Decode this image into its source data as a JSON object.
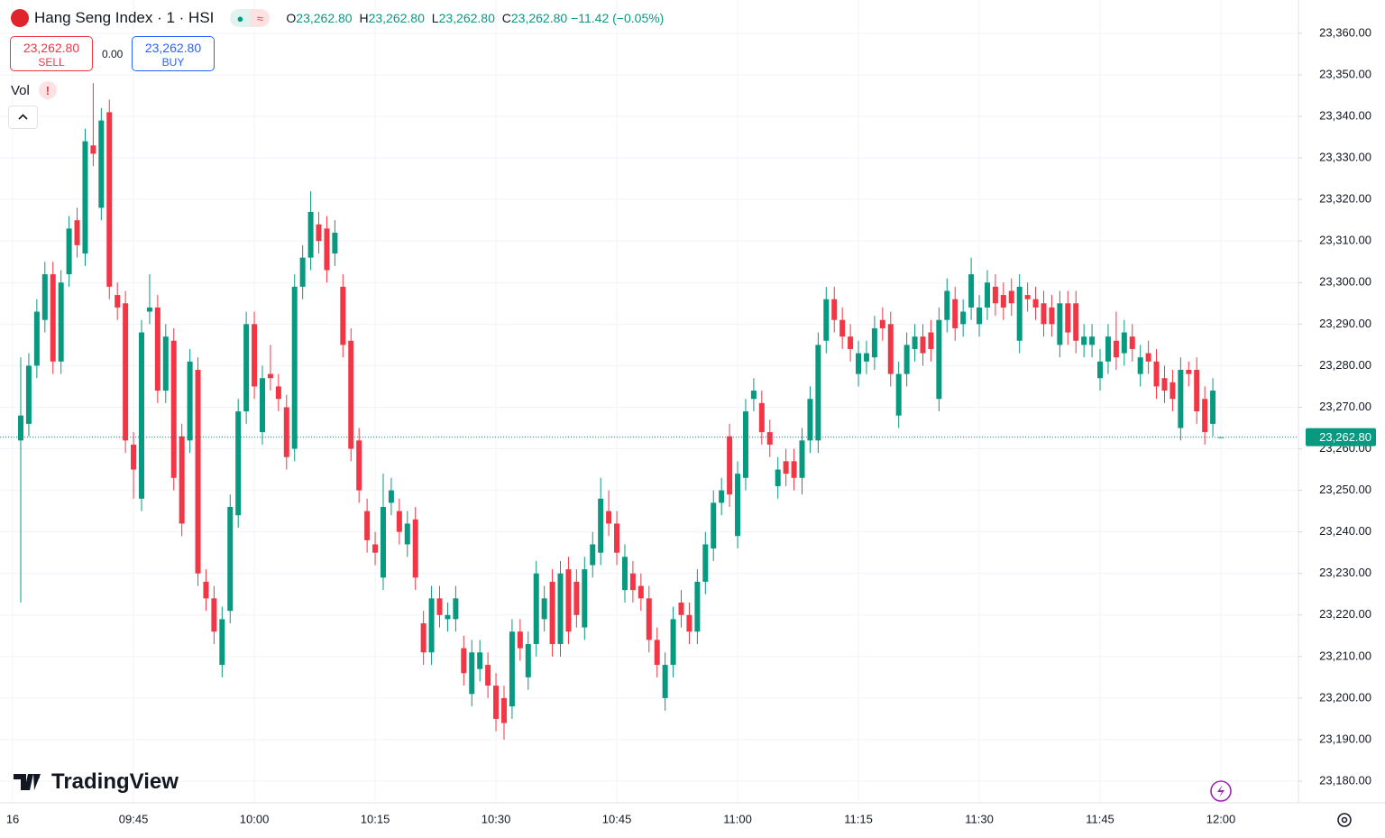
{
  "header": {
    "title": "Hang Seng Index · 1 · HSI",
    "ohlc": [
      {
        "key": "O",
        "value": "23,262.80"
      },
      {
        "key": "H",
        "value": "23,262.80"
      },
      {
        "key": "L",
        "value": "23,262.80"
      },
      {
        "key": "C",
        "value": "23,262.80"
      }
    ],
    "change": "−11.42 (−0.05%)",
    "sell_price": "23,262.80",
    "sell_label": "SELL",
    "spread": "0.00",
    "buy_price": "23,262.80",
    "buy_label": "BUY",
    "volume_label": "Vol",
    "volume_warning": "!",
    "logo": "TradingView"
  },
  "chart_data": {
    "type": "candlestick",
    "up_color": "#089981",
    "down_color": "#f23645",
    "grid": true,
    "x": [
      "09:31",
      "09:32",
      "09:33",
      "09:34",
      "09:35",
      "09:36",
      "09:37",
      "09:38",
      "09:39",
      "09:40",
      "09:41",
      "09:42",
      "09:43",
      "09:44",
      "09:45",
      "09:46",
      "09:47",
      "09:48",
      "09:49",
      "09:50",
      "09:51",
      "09:52",
      "09:53",
      "09:54",
      "09:55",
      "09:56",
      "09:57",
      "09:58",
      "09:59",
      "10:00",
      "10:01",
      "10:02",
      "10:03",
      "10:04",
      "10:05",
      "10:06",
      "10:07",
      "10:08",
      "10:09",
      "10:10",
      "10:11",
      "10:12",
      "10:13",
      "10:14",
      "10:15",
      "10:16",
      "10:17",
      "10:18",
      "10:19",
      "10:20",
      "10:21",
      "10:22",
      "10:23",
      "10:24",
      "10:25",
      "10:26",
      "10:27",
      "10:28",
      "10:29",
      "10:30",
      "10:31",
      "10:32",
      "10:33",
      "10:34",
      "10:35",
      "10:36",
      "10:37",
      "10:38",
      "10:39",
      "10:40",
      "10:41",
      "10:42",
      "10:43",
      "10:44",
      "10:45",
      "10:46",
      "10:47",
      "10:48",
      "10:49",
      "10:50",
      "10:51",
      "10:52",
      "10:53",
      "10:54",
      "10:55",
      "10:56",
      "10:57",
      "10:58",
      "10:59",
      "11:00",
      "11:01",
      "11:02",
      "11:03",
      "11:04",
      "11:05",
      "11:06",
      "11:07",
      "11:08",
      "11:09",
      "11:10",
      "11:11",
      "11:12",
      "11:13",
      "11:14",
      "11:15",
      "11:16",
      "11:17",
      "11:18",
      "11:19",
      "11:20",
      "11:21",
      "11:22",
      "11:23",
      "11:24",
      "11:25",
      "11:26",
      "11:27",
      "11:28",
      "11:29",
      "11:30",
      "11:31",
      "11:32",
      "11:33",
      "11:34",
      "11:35",
      "11:36",
      "11:37",
      "11:38",
      "11:39",
      "11:40",
      "11:41",
      "11:42",
      "11:43",
      "11:44",
      "11:45",
      "11:46",
      "11:47",
      "11:48",
      "11:49",
      "11:50",
      "11:51",
      "11:52",
      "11:53",
      "11:54",
      "11:55",
      "11:56",
      "11:57",
      "11:58",
      "11:59",
      "12:00"
    ],
    "open": [
      23262,
      23266,
      23280,
      23291,
      23302,
      23281,
      23302,
      23315,
      23307,
      23333,
      23318,
      23341,
      23297,
      23295,
      23261,
      23248,
      23293,
      23294,
      23274,
      23286,
      23263,
      23262,
      23279,
      23228,
      23224,
      23208,
      23221,
      23244,
      23269,
      23290,
      23264,
      23278,
      23275,
      23270,
      23260,
      23299,
      23306,
      23314,
      23313,
      23307,
      23299,
      23286,
      23262,
      23245,
      23237,
      23229,
      23247,
      23245,
      23237,
      23243,
      23218,
      23211,
      23224,
      23219,
      23219,
      23212,
      23201,
      23207,
      23208,
      23203,
      23200,
      23198,
      23216,
      23205,
      23213,
      23219,
      23228,
      23213,
      23231,
      23228,
      23217,
      23232,
      23235,
      23245,
      23242,
      23226,
      23230,
      23227,
      23224,
      23214,
      23200,
      23208,
      23223,
      23220,
      23216,
      23228,
      23236,
      23247,
      23263,
      23239,
      23253,
      23272,
      23271,
      23264,
      23251,
      23257,
      23257,
      23253,
      23262,
      23262,
      23286,
      23296,
      23291,
      23287,
      23278,
      23281,
      23282,
      23291,
      23290,
      23268,
      23278,
      23284,
      23287,
      23288,
      23272,
      23291,
      23296,
      23290,
      23294,
      23290,
      23294,
      23299,
      23297,
      23298,
      23286,
      23297,
      23296,
      23295,
      23294,
      23285,
      23295,
      23295,
      23285,
      23285,
      23277,
      23281,
      23286,
      23283,
      23287,
      23278,
      23283,
      23281,
      23277,
      23276,
      23265,
      23279,
      23279,
      23272,
      23266,
      23262.8
    ],
    "high": [
      23282,
      23283,
      23296,
      23305,
      23305,
      23303,
      23316,
      23318,
      23337,
      23348,
      23342,
      23344,
      23300,
      23298,
      23264,
      23291,
      23302,
      23297,
      23290,
      23289,
      23266,
      23284,
      23282,
      23231,
      23227,
      23222,
      23249,
      23272,
      23293,
      23293,
      23280,
      23285,
      23278,
      23273,
      23302,
      23309,
      23322,
      23317,
      23316,
      23315,
      23302,
      23289,
      23265,
      23248,
      23240,
      23254,
      23253,
      23248,
      23245,
      23246,
      23221,
      23227,
      23227,
      23223,
      23227,
      23215,
      23214,
      23214,
      23211,
      23206,
      23203,
      23219,
      23219,
      23216,
      23233,
      23227,
      23231,
      23233,
      23234,
      23231,
      23234,
      23240,
      23253,
      23250,
      23245,
      23237,
      23233,
      23230,
      23227,
      23217,
      23211,
      23222,
      23226,
      23223,
      23231,
      23240,
      23250,
      23253,
      23266,
      23257,
      23272,
      23277,
      23274,
      23267,
      23258,
      23260,
      23260,
      23265,
      23275,
      23288,
      23299,
      23299,
      23294,
      23290,
      23286,
      23286,
      23292,
      23294,
      23293,
      23281,
      23288,
      23290,
      23290,
      23291,
      23294,
      23301,
      23299,
      23296,
      23306,
      23297,
      23303,
      23302,
      23300,
      23301,
      23302,
      23300,
      23299,
      23298,
      23297,
      23298,
      23298,
      23298,
      23290,
      23290,
      23284,
      23290,
      23293,
      23291,
      23290,
      23285,
      23286,
      23284,
      23280,
      23279,
      23282,
      23281,
      23282,
      23275,
      23277,
      23262.8
    ],
    "low": [
      23223,
      23263,
      23277,
      23288,
      23278,
      23278,
      23299,
      23306,
      23304,
      23328,
      23315,
      23296,
      23291,
      23259,
      23248,
      23245,
      23290,
      23271,
      23271,
      23250,
      23239,
      23259,
      23227,
      23221,
      23213,
      23205,
      23218,
      23241,
      23266,
      23272,
      23261,
      23274,
      23269,
      23255,
      23257,
      23296,
      23303,
      23307,
      23300,
      23304,
      23282,
      23257,
      23247,
      23235,
      23232,
      23226,
      23244,
      23237,
      23234,
      23226,
      23208,
      23208,
      23217,
      23216,
      23216,
      23203,
      23198,
      23204,
      23200,
      23192,
      23190,
      23195,
      23209,
      23202,
      23210,
      23216,
      23210,
      23210,
      23213,
      23217,
      23214,
      23229,
      23232,
      23239,
      23232,
      23223,
      23223,
      23221,
      23211,
      23205,
      23197,
      23205,
      23217,
      23213,
      23213,
      23225,
      23233,
      23244,
      23246,
      23236,
      23250,
      23269,
      23261,
      23258,
      23248,
      23251,
      23250,
      23249,
      23259,
      23259,
      23283,
      23288,
      23284,
      23281,
      23275,
      23278,
      23279,
      23286,
      23275,
      23265,
      23275,
      23281,
      23280,
      23281,
      23269,
      23288,
      23286,
      23287,
      23291,
      23287,
      23291,
      23292,
      23291,
      23292,
      23283,
      23293,
      23291,
      23287,
      23287,
      23282,
      23285,
      23283,
      23282,
      23282,
      23274,
      23278,
      23279,
      23280,
      23281,
      23275,
      23278,
      23272,
      23271,
      23269,
      23262,
      23275,
      23266,
      23261,
      23263,
      23262.8
    ],
    "close": [
      23268,
      23280,
      23293,
      23302,
      23281,
      23300,
      23313,
      23309,
      23334,
      23331,
      23339,
      23299,
      23294,
      23262,
      23255,
      23288,
      23294,
      23274,
      23287,
      23253,
      23242,
      23281,
      23230,
      23224,
      23216,
      23219,
      23246,
      23269,
      23290,
      23275,
      23277,
      23277,
      23272,
      23258,
      23299,
      23306,
      23317,
      23310,
      23303,
      23312,
      23285,
      23260,
      23250,
      23238,
      23235,
      23246,
      23250,
      23240,
      23242,
      23229,
      23211,
      23224,
      23220,
      23220,
      23224,
      23206,
      23211,
      23211,
      23203,
      23195,
      23194,
      23216,
      23212,
      23213,
      23230,
      23224,
      23213,
      23230,
      23216,
      23220,
      23231,
      23237,
      23248,
      23242,
      23235,
      23234,
      23226,
      23224,
      23214,
      23208,
      23208,
      23219,
      23220,
      23216,
      23228,
      23237,
      23247,
      23250,
      23249,
      23254,
      23269,
      23274,
      23264,
      23261,
      23255,
      23254,
      23253,
      23262,
      23272,
      23285,
      23296,
      23291,
      23287,
      23284,
      23283,
      23283,
      23289,
      23289,
      23278,
      23278,
      23285,
      23287,
      23283,
      23284,
      23291,
      23298,
      23289,
      23293,
      23302,
      23294,
      23300,
      23295,
      23294,
      23295,
      23299,
      23296,
      23294,
      23290,
      23290,
      23295,
      23288,
      23286,
      23287,
      23287,
      23281,
      23287,
      23282,
      23288,
      23284,
      23282,
      23281,
      23275,
      23274,
      23272,
      23279,
      23278,
      23269,
      23264,
      23274,
      23262.8
    ],
    "xticks": [
      {
        "value": "09:30",
        "label": "16"
      },
      "09:45",
      "10:00",
      "10:15",
      "10:30",
      "10:45",
      "11:00",
      "11:15",
      "11:30",
      "11:45",
      "12:00"
    ],
    "ylim": [
      23174.8,
      23368.0
    ],
    "yticks": [
      {
        "value": 23180,
        "label": "23,180.00"
      },
      {
        "value": 23190,
        "label": "23,190.00"
      },
      {
        "value": 23200,
        "label": "23,200.00"
      },
      {
        "value": 23210,
        "label": "23,210.00"
      },
      {
        "value": 23220,
        "label": "23,220.00"
      },
      {
        "value": 23230,
        "label": "23,230.00"
      },
      {
        "value": 23240,
        "label": "23,240.00"
      },
      {
        "value": 23250,
        "label": "23,250.00"
      },
      {
        "value": 23260,
        "label": "23,260.00"
      },
      {
        "value": 23270,
        "label": "23,270.00"
      },
      {
        "value": 23280,
        "label": "23,280.00"
      },
      {
        "value": 23290,
        "label": "23,290.00"
      },
      {
        "value": 23300,
        "label": "23,300.00"
      },
      {
        "value": 23310,
        "label": "23,310.00"
      },
      {
        "value": 23320,
        "label": "23,320.00"
      },
      {
        "value": 23330,
        "label": "23,330.00"
      },
      {
        "value": 23340,
        "label": "23,340.00"
      },
      {
        "value": 23350,
        "label": "23,350.00"
      },
      {
        "value": 23360,
        "label": "23,360.00"
      }
    ],
    "last_price": 23262.8,
    "last_price_label": "23,262.80"
  }
}
